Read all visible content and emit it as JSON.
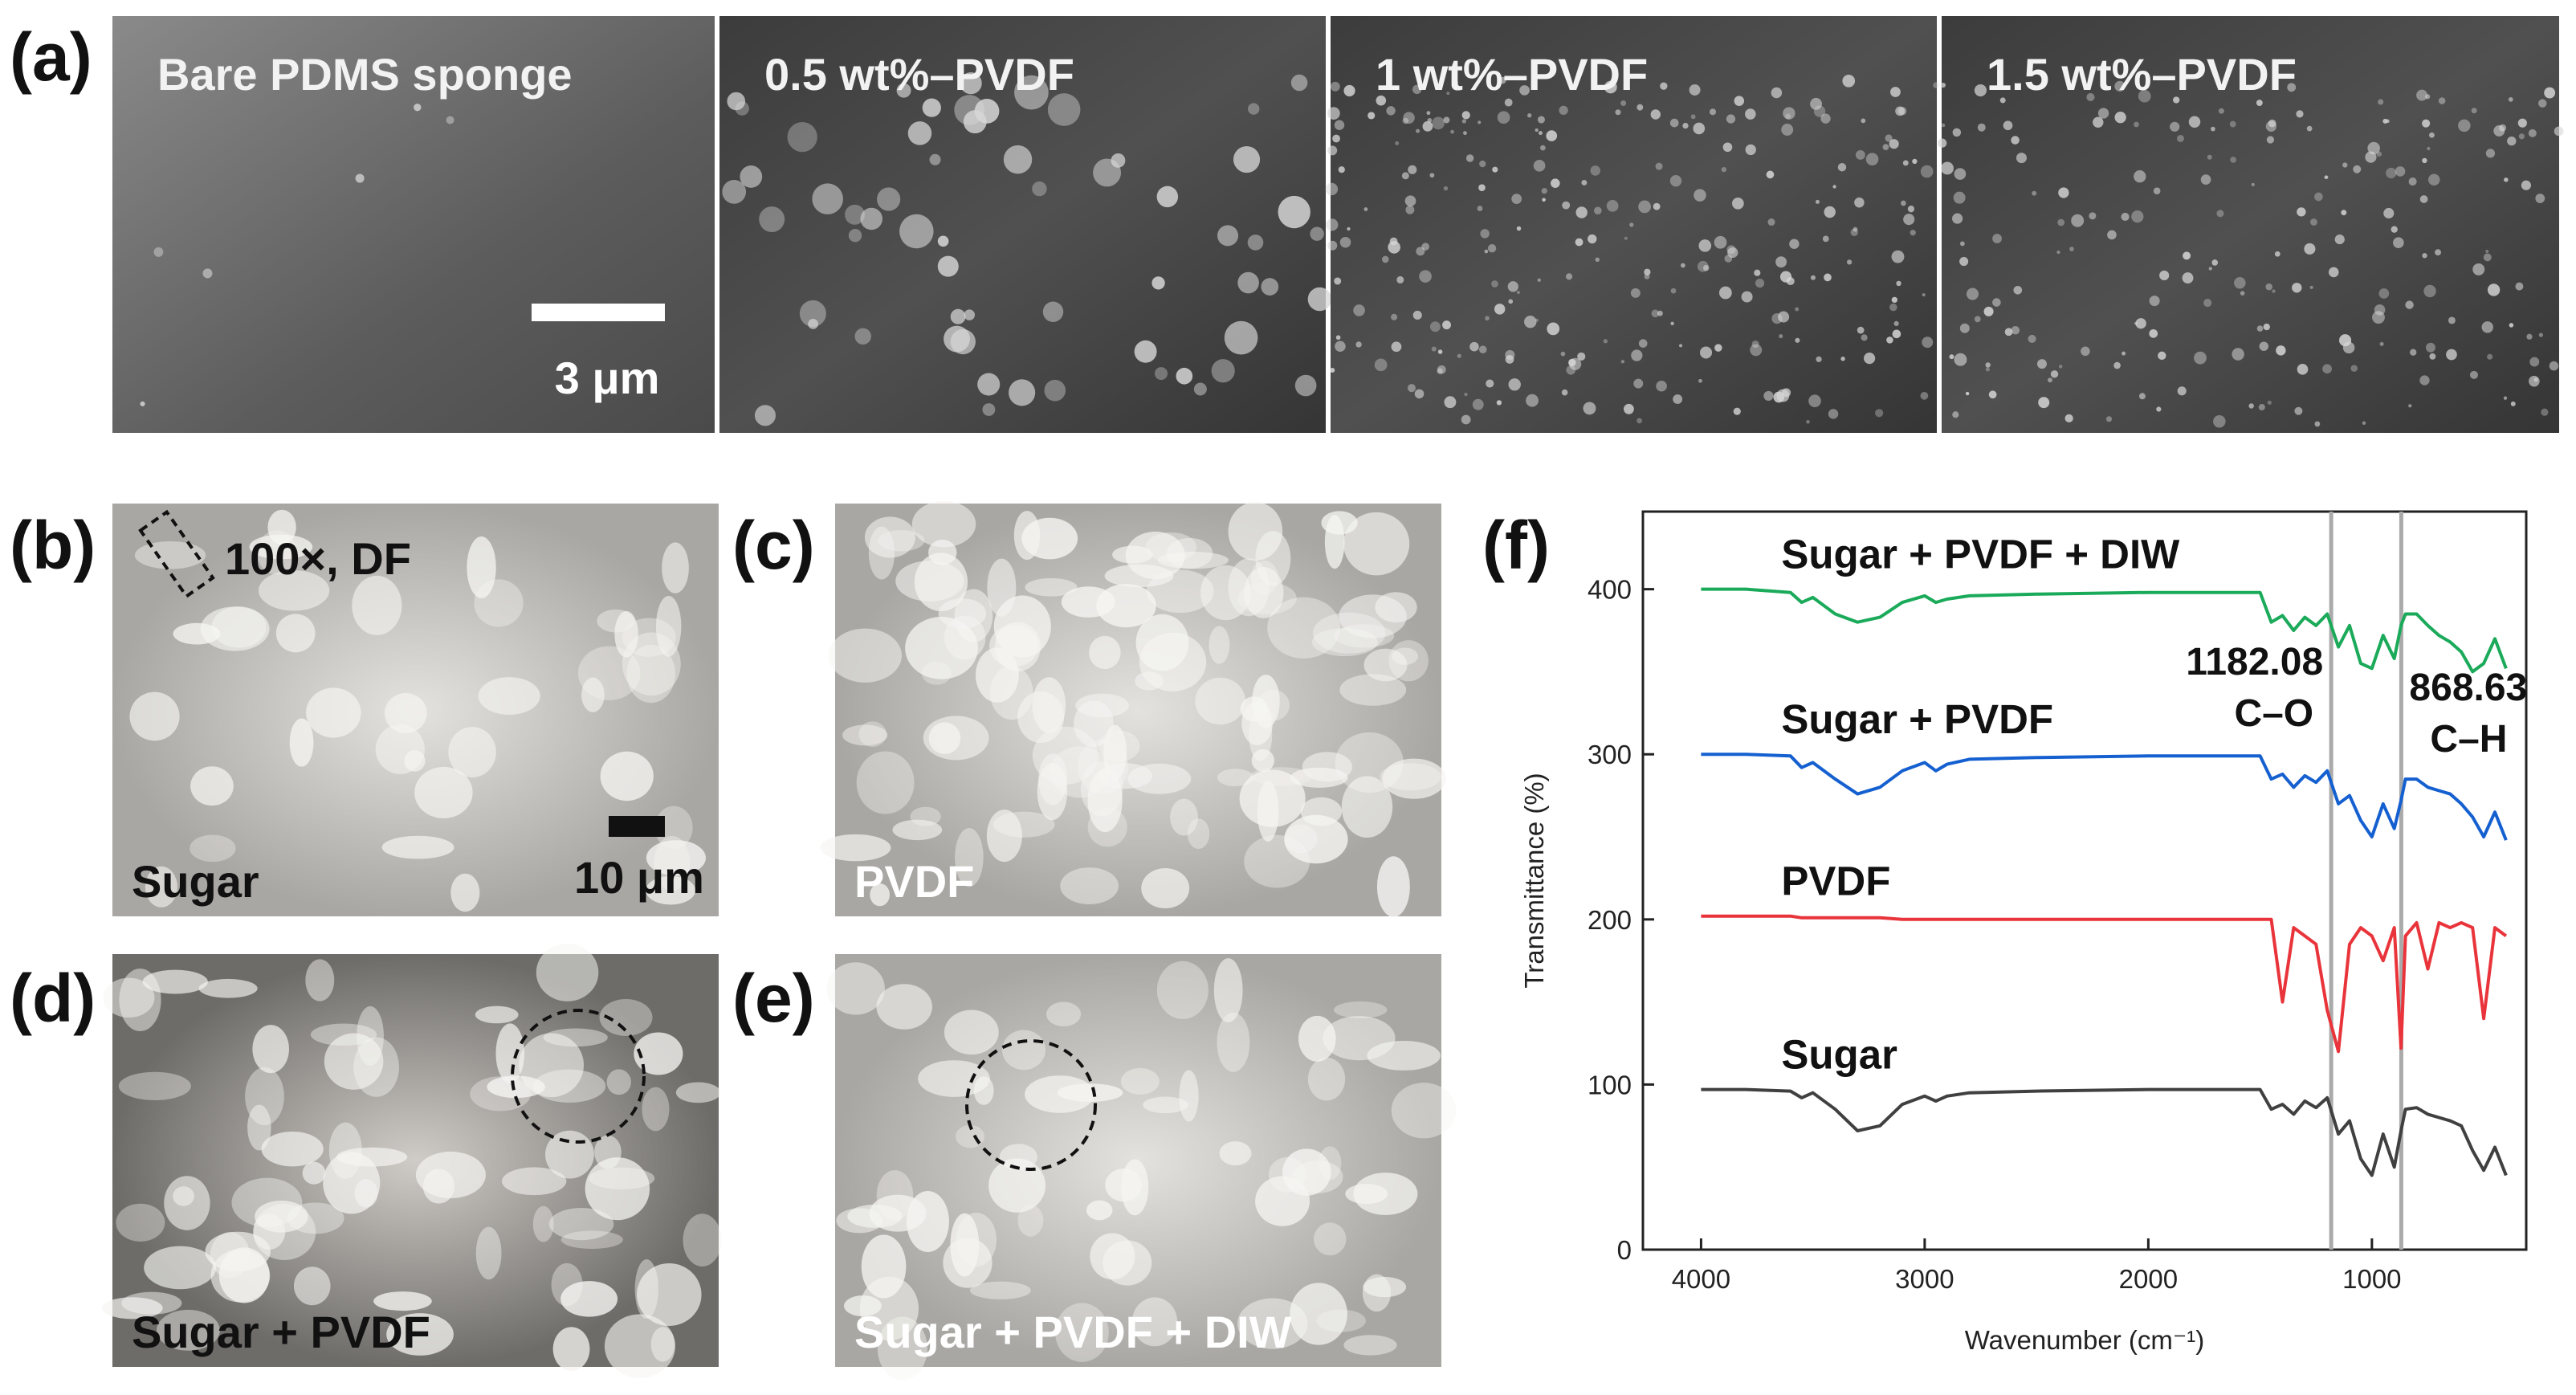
{
  "panel_a": {
    "label": "(a)",
    "images": [
      {
        "caption": "Bare PDMS sponge"
      },
      {
        "caption": "0.5 wt%–PVDF"
      },
      {
        "caption": "1 wt%–PVDF"
      },
      {
        "caption": "1.5 wt%–PVDF"
      }
    ],
    "scale_bar": "3 μm"
  },
  "panels": [
    {
      "label": "(b)",
      "caption": "Sugar",
      "note": "100×, DF",
      "scale_bar": "10 μm"
    },
    {
      "label": "(c)",
      "caption": "PVDF"
    },
    {
      "label": "(d)",
      "caption": "Sugar + PVDF"
    },
    {
      "label": "(e)",
      "caption": "Sugar + PVDF + DIW"
    }
  ],
  "chart_data": {
    "type": "line",
    "panel_label": "(f)",
    "x_label": "Wavenumber (cm⁻¹)",
    "y_label": "Transmittance (%)",
    "xlim": [
      4260,
      310
    ],
    "ylim": [
      0,
      447
    ],
    "xticks": [
      4000,
      3000,
      2000,
      1000
    ],
    "yticks": [
      0,
      100,
      200,
      300,
      400
    ],
    "x": [
      4000,
      3800,
      3600,
      3550,
      3500,
      3400,
      3300,
      3200,
      3100,
      3000,
      2950,
      2900,
      2800,
      2500,
      2000,
      1600,
      1500,
      1450,
      1400,
      1350,
      1300,
      1250,
      1200,
      1150,
      1100,
      1050,
      1000,
      950,
      900,
      870,
      850,
      800,
      750,
      700,
      650,
      600,
      550,
      500,
      450,
      400
    ],
    "series": [
      {
        "name": "Sugar + PVDF + DIW",
        "color": "#1aaa5a",
        "values": [
          400,
          400,
          398,
          392,
          395,
          385,
          380,
          383,
          392,
          396,
          392,
          394,
          396,
          397,
          398,
          398,
          398,
          380,
          384,
          375,
          383,
          378,
          385,
          365,
          378,
          355,
          352,
          372,
          358,
          378,
          385,
          385,
          378,
          372,
          368,
          362,
          350,
          355,
          370,
          352
        ]
      },
      {
        "name": "Sugar + PVDF",
        "color": "#1560d0",
        "values": [
          300,
          300,
          299,
          292,
          295,
          285,
          276,
          280,
          290,
          295,
          290,
          294,
          297,
          298,
          299,
          299,
          299,
          285,
          288,
          280,
          287,
          283,
          290,
          270,
          275,
          260,
          250,
          270,
          255,
          272,
          285,
          285,
          280,
          278,
          276,
          270,
          262,
          250,
          265,
          248
        ]
      },
      {
        "name": "PVDF",
        "color": "#e8343a",
        "values": [
          202,
          202,
          202,
          201,
          201,
          201,
          201,
          201,
          200,
          200,
          200,
          200,
          200,
          200,
          200,
          200,
          200,
          200,
          150,
          195,
          190,
          185,
          145,
          120,
          185,
          195,
          190,
          175,
          195,
          122,
          190,
          198,
          170,
          198,
          195,
          198,
          195,
          140,
          195,
          190
        ]
      },
      {
        "name": "Sugar",
        "color": "#404040",
        "values": [
          97,
          97,
          96,
          92,
          95,
          85,
          72,
          75,
          88,
          93,
          90,
          93,
          95,
          96,
          97,
          97,
          97,
          85,
          88,
          82,
          90,
          86,
          92,
          70,
          78,
          55,
          45,
          70,
          50,
          72,
          85,
          86,
          82,
          80,
          78,
          75,
          60,
          48,
          62,
          45
        ]
      }
    ],
    "annotations": [
      {
        "x": 1182.08,
        "text": "C–O"
      },
      {
        "x": 868.63,
        "text": "C–H"
      }
    ]
  }
}
